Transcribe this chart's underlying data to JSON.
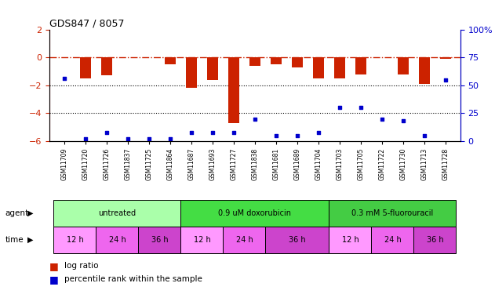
{
  "title": "GDS847 / 8057",
  "samples": [
    "GSM11709",
    "GSM11720",
    "GSM11726",
    "GSM11837",
    "GSM11725",
    "GSM11864",
    "GSM11687",
    "GSM11693",
    "GSM11727",
    "GSM11838",
    "GSM11681",
    "GSM11689",
    "GSM11704",
    "GSM11703",
    "GSM11705",
    "GSM11722",
    "GSM11730",
    "GSM11713",
    "GSM11728"
  ],
  "log_ratio": [
    0.0,
    -1.5,
    -1.3,
    0.0,
    0.0,
    -0.5,
    -2.2,
    -1.6,
    -4.7,
    -0.6,
    -0.5,
    -0.7,
    -1.5,
    -1.5,
    -1.2,
    0.0,
    -1.2,
    -1.9,
    -0.1
  ],
  "percentile_rank": [
    56,
    2,
    8,
    2,
    2,
    2,
    8,
    8,
    8,
    20,
    5,
    5,
    8,
    30,
    30,
    20,
    18,
    5,
    55
  ],
  "agent_groups": [
    {
      "label": "untreated",
      "start": 0,
      "end": 6,
      "color": "#aaffaa"
    },
    {
      "label": "0.9 uM doxorubicin",
      "start": 6,
      "end": 13,
      "color": "#44dd44"
    },
    {
      "label": "0.3 mM 5-fluorouracil",
      "start": 13,
      "end": 19,
      "color": "#44cc44"
    }
  ],
  "time_groups": [
    {
      "label": "12 h",
      "start": 0,
      "end": 2,
      "color": "#ff99ff"
    },
    {
      "label": "24 h",
      "start": 2,
      "end": 4,
      "color": "#ee66ee"
    },
    {
      "label": "36 h",
      "start": 4,
      "end": 6,
      "color": "#cc44cc"
    },
    {
      "label": "12 h",
      "start": 6,
      "end": 8,
      "color": "#ff99ff"
    },
    {
      "label": "24 h",
      "start": 8,
      "end": 10,
      "color": "#ee66ee"
    },
    {
      "label": "36 h",
      "start": 10,
      "end": 13,
      "color": "#cc44cc"
    },
    {
      "label": "12 h",
      "start": 13,
      "end": 15,
      "color": "#ff99ff"
    },
    {
      "label": "24 h",
      "start": 15,
      "end": 17,
      "color": "#ee66ee"
    },
    {
      "label": "36 h",
      "start": 17,
      "end": 19,
      "color": "#cc44cc"
    }
  ],
  "ylim_left": [
    -6,
    2
  ],
  "ylim_right": [
    0,
    100
  ],
  "yticks_left": [
    2,
    0,
    -2,
    -4,
    -6
  ],
  "yticks_right": [
    100,
    75,
    50,
    25,
    0
  ],
  "bar_color": "#cc2200",
  "dot_color": "#0000cc",
  "hline_color": "#cc2200",
  "dotline1": -2,
  "dotline2": -4
}
